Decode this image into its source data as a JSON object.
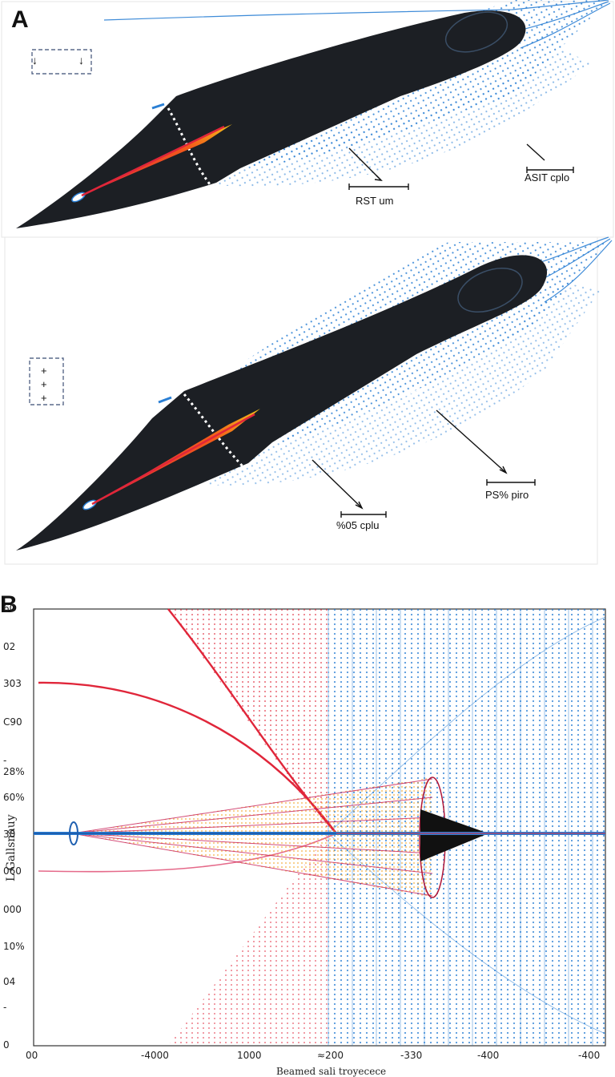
{
  "panels": {
    "a": {
      "letter": "A",
      "upper_annotations": [
        "RST um",
        "ASIT cplo"
      ],
      "lower_annotations": [
        "%05 cplu",
        "PS% piro"
      ],
      "legend_symbols_upper": [
        "↓",
        "↓"
      ],
      "legend_symbols_lower": [
        "+",
        "+",
        "+"
      ]
    },
    "b": {
      "letter": "B",
      "y_ticks": [
        "60",
        "02",
        "303",
        "C90",
        "- 28%",
        "60%",
        "30",
        "060",
        "000",
        "10%",
        "04",
        "-",
        "0"
      ],
      "x_ticks": [
        "00",
        "-4000",
        "1000",
        "≈200",
        "-330",
        "-400",
        "-400"
      ],
      "x_label": "Beamed sali troyecece",
      "y_label": "L Gallsnauy"
    }
  },
  "colors": {
    "body": "#1c1f24",
    "flow_blue": "#2a7fd4",
    "flow_red": "#e0263a",
    "jet_orange": "#f2a01a"
  }
}
